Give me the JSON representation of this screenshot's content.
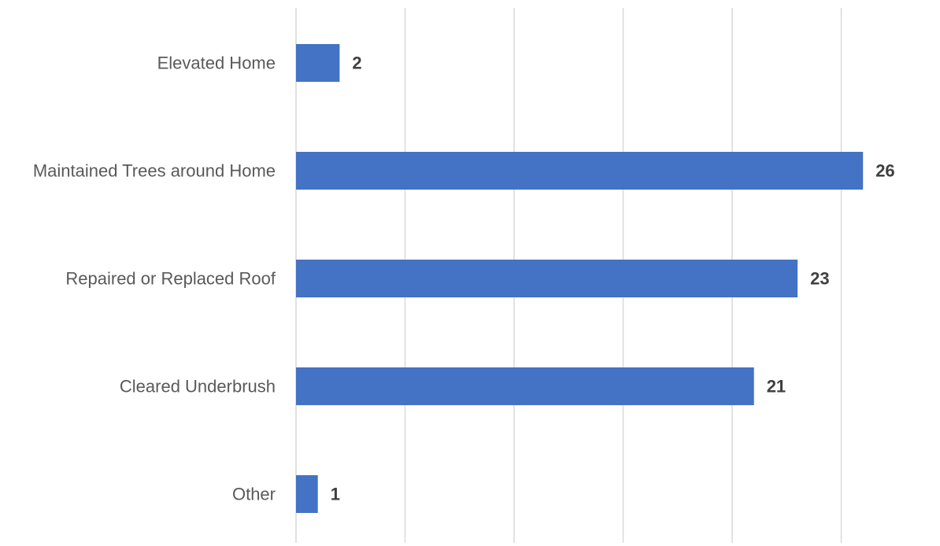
{
  "chart_data": {
    "type": "bar",
    "orientation": "horizontal",
    "categories": [
      "Elevated Home",
      "Maintained Trees around Home",
      "Repaired or Replaced Roof",
      "Cleared Underbrush",
      "Other"
    ],
    "values": [
      2,
      26,
      23,
      21,
      1
    ],
    "xlim": [
      0,
      25
    ],
    "x_gridlines": [
      0,
      5,
      10,
      15,
      20,
      25
    ],
    "grid": true,
    "legend": "none",
    "data_labels": true,
    "bar_color": "#4472C4",
    "title": "",
    "xlabel": "",
    "ylabel": ""
  }
}
